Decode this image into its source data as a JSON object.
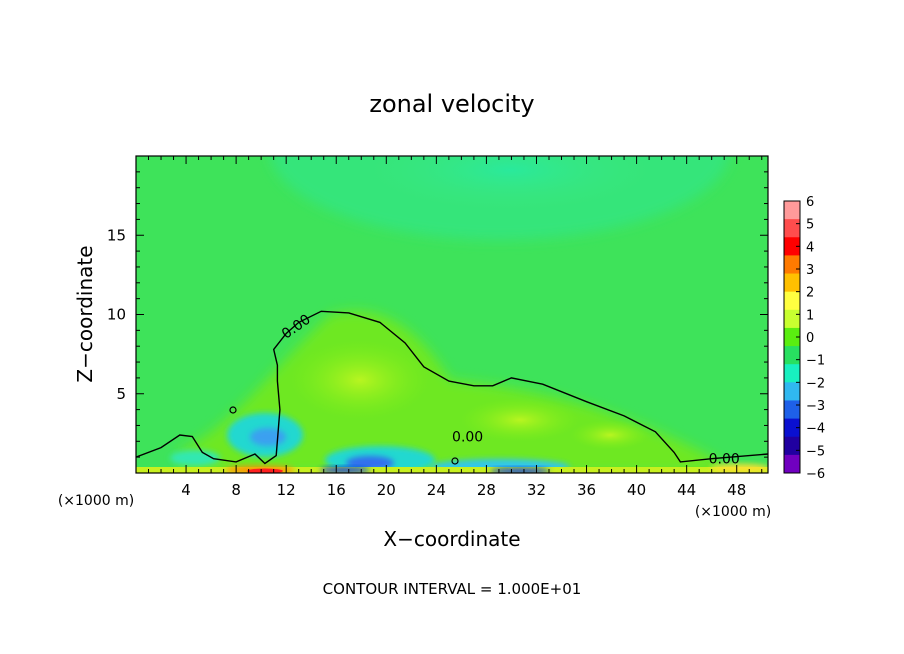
{
  "chart_data": {
    "type": "heatmap",
    "title": "zonal velocity",
    "xlabel": "X−coordinate",
    "ylabel": "Z−coordinate",
    "x_unit_left": "(×1000 m)",
    "x_unit_right": "(×1000 m)",
    "xlim": [
      0,
      50.5
    ],
    "ylim": [
      0,
      20
    ],
    "x_ticks": [
      4,
      8,
      12,
      16,
      20,
      24,
      28,
      32,
      36,
      40,
      44,
      48
    ],
    "y_ticks": [
      5,
      10,
      15
    ],
    "contour_labels": [
      {
        "text": "0.00",
        "x": 13.0,
        "z": 9.0
      },
      {
        "text": "0.00",
        "x": 26.5,
        "z": 2.0
      },
      {
        "text": "0.00",
        "x": 47.0,
        "z": 0.6
      }
    ],
    "zero_contour": [
      [
        0,
        1.0
      ],
      [
        2.0,
        1.6
      ],
      [
        3.5,
        2.4
      ],
      [
        4.5,
        2.3
      ],
      [
        5.3,
        1.3
      ],
      [
        6.2,
        0.9
      ],
      [
        8.0,
        0.7
      ],
      [
        9.5,
        1.2
      ],
      [
        10.3,
        0.6
      ],
      [
        11.2,
        1.1
      ],
      [
        11.5,
        4.0
      ],
      [
        11.3,
        5.8
      ],
      [
        11.3,
        6.8
      ],
      [
        11.0,
        7.8
      ],
      [
        12.0,
        8.8
      ],
      [
        13.0,
        9.5
      ],
      [
        14.8,
        10.2
      ],
      [
        17.0,
        10.1
      ],
      [
        19.5,
        9.5
      ],
      [
        21.5,
        8.2
      ],
      [
        23.0,
        6.7
      ],
      [
        25.0,
        5.8
      ],
      [
        27.0,
        5.5
      ],
      [
        28.5,
        5.5
      ],
      [
        30.0,
        6.0
      ],
      [
        32.5,
        5.6
      ],
      [
        36.0,
        4.5
      ],
      [
        39.0,
        3.6
      ],
      [
        41.5,
        2.6
      ],
      [
        43.0,
        1.3
      ],
      [
        43.5,
        0.7
      ],
      [
        46.0,
        0.9
      ],
      [
        50.5,
        1.2
      ]
    ],
    "colorbar": {
      "levels": [
        "6",
        "5",
        "4",
        "3",
        "2",
        "1",
        "0",
        "−1",
        "−2",
        "−3",
        "−4",
        "−5",
        "−6"
      ],
      "colors": [
        "#ff9a9a",
        "#ff4d4d",
        "#ff0000",
        "#ff7a00",
        "#ffc000",
        "#ffff40",
        "#c8ff30",
        "#5aee10",
        "#28e060",
        "#18f0c0",
        "#30b8f0",
        "#1e60e8",
        "#0a10d0",
        "#2000a0",
        "#7000c0"
      ]
    },
    "footer": "CONTOUR INTERVAL = 1.000E+01"
  }
}
